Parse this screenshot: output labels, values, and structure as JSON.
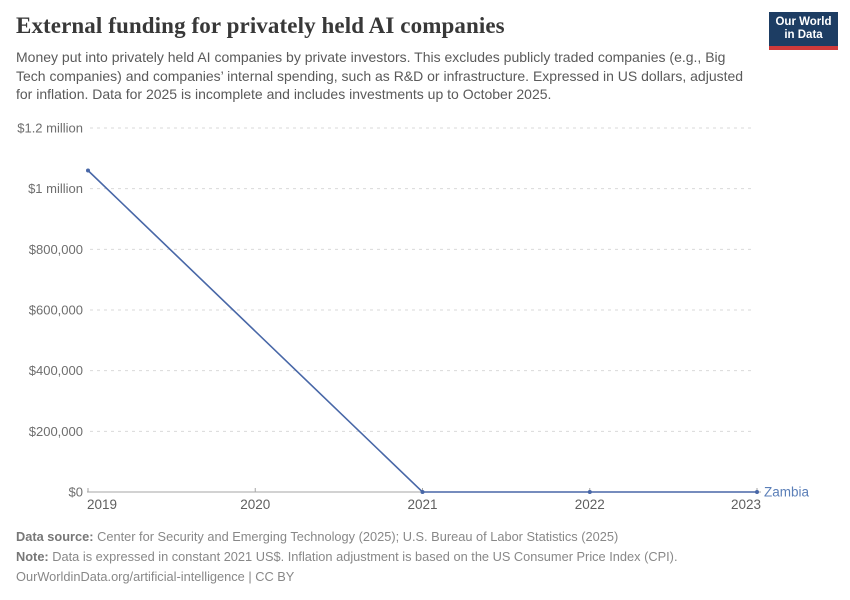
{
  "header": {
    "title": "External funding for privately held AI companies",
    "subtitle": "Money put into privately held AI companies by private investors. This excludes publicly traded companies (e.g., Big Tech companies) and companies’ internal spending, such as R&D or infrastructure. Expressed in US dollars, adjusted for inflation. Data for 2025 is incomplete and includes investments up to October 2025."
  },
  "logo": {
    "line1": "Our World",
    "line2": "in Data",
    "bg_color": "#1d3d63",
    "accent_color": "#cf3a3a"
  },
  "chart_data": {
    "type": "line",
    "title": "External funding for privately held AI companies",
    "xlabel": "",
    "ylabel": "",
    "x_range": [
      2019,
      2023
    ],
    "x_ticks": [
      2019,
      2020,
      2021,
      2022,
      2023
    ],
    "ylim": [
      0,
      1200000
    ],
    "y_ticks": [
      {
        "value": 0,
        "label": "$0"
      },
      {
        "value": 200000,
        "label": "$200,000"
      },
      {
        "value": 400000,
        "label": "$400,000"
      },
      {
        "value": 600000,
        "label": "$600,000"
      },
      {
        "value": 800000,
        "label": "$800,000"
      },
      {
        "value": 1000000,
        "label": "$1 million"
      },
      {
        "value": 1200000,
        "label": "$1.2 million"
      }
    ],
    "grid": "horizontal-dashed",
    "legend_position": "end-of-line-label",
    "series": [
      {
        "name": "Zambia",
        "color": "#4867a7",
        "label_color": "#5b7fb8",
        "x": [
          2019,
          2020,
          2021,
          2022,
          2023
        ],
        "values": [
          1060000,
          null,
          0,
          0,
          0
        ]
      }
    ],
    "colors": {
      "gridline": "#d9d9d9",
      "axis": "#a5a5a5",
      "y_tick_label": "#6e6e6e",
      "x_tick_label": "#5f5f5f"
    }
  },
  "footer": {
    "datasource_label": "Data source:",
    "datasource_text": "Center for Security and Emerging Technology (2025); U.S. Bureau of Labor Statistics (2025)",
    "note_label": "Note:",
    "note_text": "Data is expressed in constant 2021 US$. Inflation adjustment is based on the US Consumer Price Index (CPI).",
    "license": "OurWorldinData.org/artificial-intelligence | CC BY"
  }
}
